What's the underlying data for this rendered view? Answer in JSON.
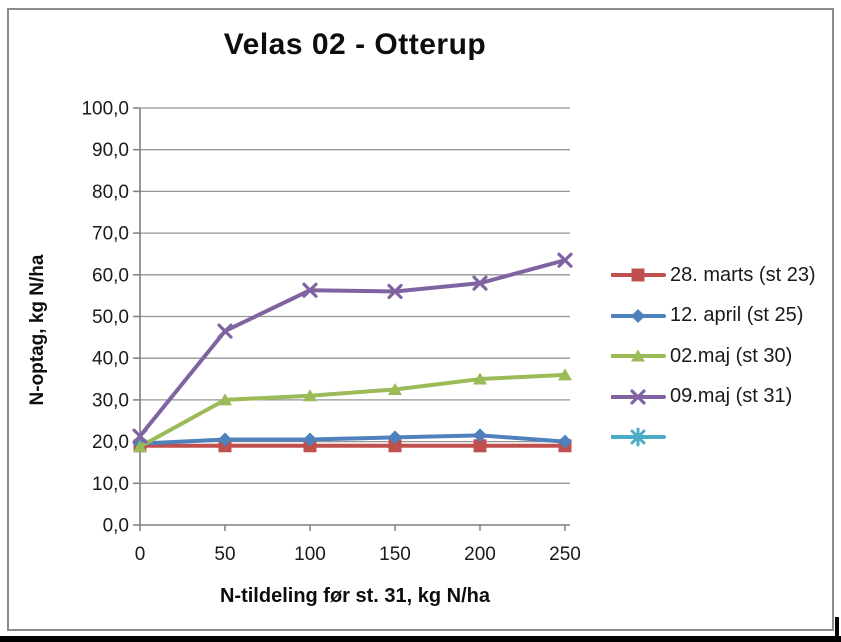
{
  "title": "Velas 02 - Otterup",
  "colors": {
    "series_red": "#C0504D",
    "series_blue": "#4F81BD",
    "series_green": "#9BBB59",
    "series_purple": "#8064A2",
    "series_cyan": "#4BACC6",
    "gridline": "#969696",
    "axis": "#7F7F7F",
    "frame_border": "#8C8C8C",
    "text": "#1a1a1a"
  },
  "chart_data": {
    "type": "line",
    "title": "Velas 02 - Otterup",
    "xlabel": "N-tildeling før st. 31, kg N/ha",
    "ylabel": "N-optag, kg N/ha",
    "x": [
      0,
      50,
      100,
      150,
      200,
      250
    ],
    "x_tick_labels": [
      "0",
      "50",
      "100",
      "150",
      "200",
      "250"
    ],
    "y_ticks": [
      0,
      10,
      20,
      30,
      40,
      50,
      60,
      70,
      80,
      90,
      100
    ],
    "y_tick_labels": [
      "0,0",
      "10,0",
      "20,0",
      "30,0",
      "40,0",
      "50,0",
      "60,0",
      "70,0",
      "80,0",
      "90,0",
      "100,0"
    ],
    "xlim": [
      0,
      250
    ],
    "ylim": [
      0,
      100
    ],
    "grid": true,
    "legend_position": "right",
    "series": [
      {
        "name": "28. marts (st 23)",
        "color": "#C0504D",
        "marker": "square",
        "values": [
          19.0,
          19.0,
          19.0,
          19.0,
          19.0,
          19.0
        ]
      },
      {
        "name": "12. april (st 25)",
        "color": "#4F81BD",
        "marker": "diamond",
        "values": [
          19.5,
          20.5,
          20.5,
          21.0,
          21.5,
          20.0
        ]
      },
      {
        "name": "02.maj (st 30)",
        "color": "#9BBB59",
        "marker": "triangle",
        "values": [
          18.8,
          30.0,
          31.0,
          32.5,
          35.0,
          36.0
        ]
      },
      {
        "name": "09.maj (st 31)",
        "color": "#8064A2",
        "marker": "x",
        "values": [
          21.3,
          46.5,
          56.3,
          56.0,
          58.0,
          63.5
        ]
      },
      {
        "name": "",
        "color": "#4BACC6",
        "marker": "asterisk",
        "values": []
      }
    ]
  }
}
